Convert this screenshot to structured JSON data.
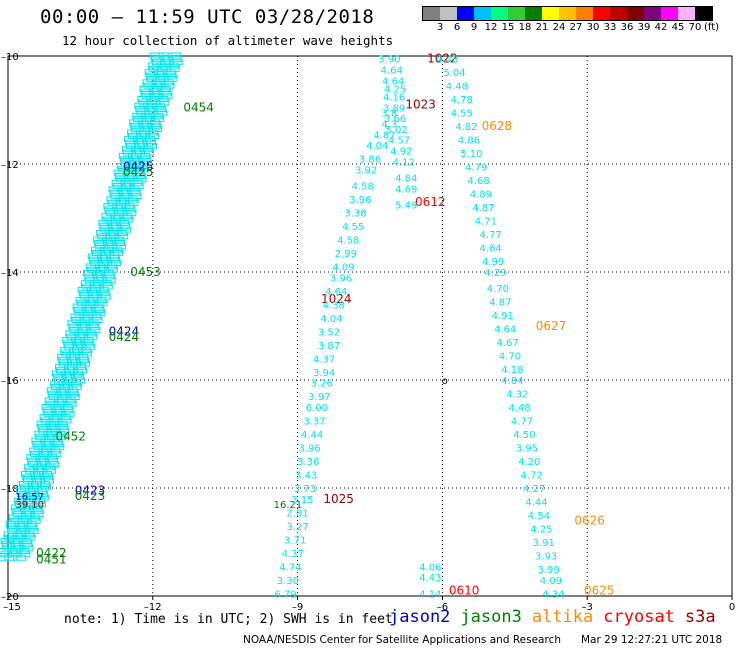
{
  "header": {
    "title": "00:00 – 11:59 UTC 03/28/2018",
    "subtitle": "12 hour collection of altimeter wave heights"
  },
  "colorbar": {
    "unit": "(ft)",
    "colors": [
      "#808080",
      "#c0c0c0",
      "#0000ff",
      "#00bfff",
      "#00ff7f",
      "#32cd32",
      "#008000",
      "#ffff00",
      "#ffc000",
      "#ff8000",
      "#ff0000",
      "#c00000",
      "#800000",
      "#800080",
      "#ff00ff",
      "#ffb0ff",
      "#000000"
    ],
    "tick_labels": [
      "3",
      "6",
      "9",
      "12",
      "15",
      "18",
      "21",
      "24",
      "27",
      "30",
      "33",
      "36",
      "39",
      "42",
      "45",
      "70"
    ]
  },
  "map": {
    "x_tick_labels": [
      "–15",
      "–12",
      "–9",
      "–6",
      "–3",
      "0"
    ],
    "y_tick_labels": [
      "–10",
      "–12",
      "–14",
      "–16",
      "–18",
      "–20"
    ],
    "marker": "o"
  },
  "chart_data": {
    "type": "scatter",
    "xlim": [
      -15,
      0
    ],
    "ylim": [
      -20,
      -10
    ],
    "grid": true,
    "series": [
      {
        "name": "jason2",
        "color": "#0000cd",
        "labels": [
          {
            "x": -12.3,
            "y": -12.05,
            "text": "0425"
          },
          {
            "x": -12.6,
            "y": -15.1,
            "text": "0424"
          },
          {
            "x": -13.3,
            "y": -18.05,
            "text": "0423"
          },
          {
            "x": -14.55,
            "y": -18.15,
            "text": "16.57"
          }
        ]
      },
      {
        "name": "jason3",
        "color": "#008000",
        "labels": [
          {
            "x": -11.05,
            "y": -10.95,
            "text": "0454"
          },
          {
            "x": -12.3,
            "y": -12.15,
            "text": "0425"
          },
          {
            "x": -12.15,
            "y": -14.0,
            "text": "0453"
          },
          {
            "x": -12.6,
            "y": -15.2,
            "text": "0424"
          },
          {
            "x": -13.3,
            "y": -18.15,
            "text": "0423"
          },
          {
            "x": -13.7,
            "y": -17.05,
            "text": "0452"
          },
          {
            "x": -14.1,
            "y": -19.2,
            "text": "0422"
          },
          {
            "x": -14.1,
            "y": -19.32,
            "text": "0451"
          },
          {
            "x": -9.2,
            "y": -18.3,
            "text": "16.21"
          }
        ]
      },
      {
        "name": "altika",
        "color": "#ff8c00",
        "labels": [
          {
            "x": -4.87,
            "y": -11.3,
            "text": "0628"
          },
          {
            "x": -3.75,
            "y": -15.0,
            "text": "0627"
          },
          {
            "x": -2.95,
            "y": -18.6,
            "text": "0626"
          },
          {
            "x": -2.75,
            "y": -19.9,
            "text": "0625"
          }
        ]
      },
      {
        "name": "cryosat",
        "color": "#ff0000",
        "labels": [
          {
            "x": -6.25,
            "y": -12.7,
            "text": "0612"
          },
          {
            "x": -5.55,
            "y": -19.9,
            "text": "0610"
          }
        ]
      },
      {
        "name": "s3a",
        "color": "#a00000",
        "labels": [
          {
            "x": -6.0,
            "y": -10.05,
            "text": "1022"
          },
          {
            "x": -6.45,
            "y": -10.9,
            "text": "1023"
          },
          {
            "x": -8.2,
            "y": -14.5,
            "text": "1024"
          },
          {
            "x": -8.15,
            "y": -18.2,
            "text": "1025"
          },
          {
            "x": -14.55,
            "y": -18.3,
            "text": "39.10"
          }
        ]
      },
      {
        "name": "",
        "color": "#00e5ee",
        "labels": [
          {
            "x": -7.1,
            "y": -10.05,
            "text": "3.90"
          },
          {
            "x": -7.05,
            "y": -10.25,
            "text": "4.64"
          },
          {
            "x": -7.02,
            "y": -10.45,
            "text": "4.64"
          },
          {
            "x": -6.98,
            "y": -10.6,
            "text": "4.25"
          },
          {
            "x": -7.0,
            "y": -10.75,
            "text": "4.16"
          },
          {
            "x": -7.0,
            "y": -10.95,
            "text": "3.89"
          },
          {
            "x": -7.1,
            "y": -11.05,
            "text": "3.8"
          },
          {
            "x": -6.98,
            "y": -11.15,
            "text": "3.66"
          },
          {
            "x": -7.1,
            "y": -11.25,
            "text": "4.3"
          },
          {
            "x": -6.95,
            "y": -11.35,
            "text": "5.02"
          },
          {
            "x": -7.2,
            "y": -11.45,
            "text": "4.87"
          },
          {
            "x": -6.9,
            "y": -11.55,
            "text": "4.57"
          },
          {
            "x": -7.35,
            "y": -11.65,
            "text": "4.04"
          },
          {
            "x": -6.85,
            "y": -11.75,
            "text": "4.92"
          },
          {
            "x": -7.5,
            "y": -11.9,
            "text": "3.86"
          },
          {
            "x": -6.8,
            "y": -11.95,
            "text": "4.12"
          },
          {
            "x": -7.58,
            "y": -12.1,
            "text": "3.92"
          },
          {
            "x": -6.75,
            "y": -12.25,
            "text": "4.84"
          },
          {
            "x": -7.65,
            "y": -12.4,
            "text": "4.58"
          },
          {
            "x": -6.75,
            "y": -12.45,
            "text": "4.69"
          },
          {
            "x": -7.7,
            "y": -12.65,
            "text": "3.96"
          },
          {
            "x": -6.75,
            "y": -12.75,
            "text": "5.49"
          },
          {
            "x": -7.8,
            "y": -12.9,
            "text": "3.38"
          },
          {
            "x": -7.85,
            "y": -13.15,
            "text": "4.55"
          },
          {
            "x": -7.95,
            "y": -13.4,
            "text": "4.58"
          },
          {
            "x": -8.0,
            "y": -13.65,
            "text": "2.99"
          },
          {
            "x": -8.05,
            "y": -13.9,
            "text": "4.09"
          },
          {
            "x": -8.1,
            "y": -14.1,
            "text": "3.96"
          },
          {
            "x": -8.2,
            "y": -14.35,
            "text": "4.64"
          },
          {
            "x": -8.25,
            "y": -14.6,
            "text": "4.38"
          },
          {
            "x": -8.3,
            "y": -14.85,
            "text": "4.04"
          },
          {
            "x": -8.35,
            "y": -15.1,
            "text": "3.52"
          },
          {
            "x": -8.35,
            "y": -15.35,
            "text": "3.87"
          },
          {
            "x": -8.45,
            "y": -15.6,
            "text": "4.37"
          },
          {
            "x": -8.45,
            "y": -15.85,
            "text": "3.94"
          },
          {
            "x": -8.5,
            "y": -16.05,
            "text": "3.26"
          },
          {
            "x": -8.55,
            "y": -16.3,
            "text": "3.97"
          },
          {
            "x": -8.6,
            "y": -16.5,
            "text": "6.00"
          },
          {
            "x": -8.65,
            "y": -16.75,
            "text": "3.37"
          },
          {
            "x": -8.7,
            "y": -17.0,
            "text": "4.44"
          },
          {
            "x": -8.75,
            "y": -17.25,
            "text": "3.96"
          },
          {
            "x": -8.78,
            "y": -17.5,
            "text": "3.36"
          },
          {
            "x": -8.82,
            "y": -17.75,
            "text": "3.43"
          },
          {
            "x": -8.85,
            "y": -18.0,
            "text": "3.73"
          },
          {
            "x": -8.9,
            "y": -18.2,
            "text": "3.15"
          },
          {
            "x": -9.0,
            "y": -18.45,
            "text": "2.81"
          },
          {
            "x": -9.0,
            "y": -18.7,
            "text": "3.27"
          },
          {
            "x": -9.05,
            "y": -18.95,
            "text": "3.71"
          },
          {
            "x": -9.1,
            "y": -19.2,
            "text": "4.37"
          },
          {
            "x": -9.15,
            "y": -19.45,
            "text": "4.74"
          },
          {
            "x": -9.2,
            "y": -19.7,
            "text": "3.30"
          },
          {
            "x": -9.25,
            "y": -19.95,
            "text": "6.79"
          },
          {
            "x": -5.9,
            "y": -10.05,
            "text": "4.43"
          },
          {
            "x": -5.75,
            "y": -10.3,
            "text": "5.04"
          },
          {
            "x": -5.7,
            "y": -10.55,
            "text": "4.48"
          },
          {
            "x": -5.6,
            "y": -10.8,
            "text": "4.78"
          },
          {
            "x": -5.6,
            "y": -11.05,
            "text": "4.55"
          },
          {
            "x": -5.5,
            "y": -11.3,
            "text": "4.82"
          },
          {
            "x": -5.45,
            "y": -11.55,
            "text": "4.86"
          },
          {
            "x": -5.4,
            "y": -11.8,
            "text": "5.10"
          },
          {
            "x": -5.3,
            "y": -12.05,
            "text": "4.79"
          },
          {
            "x": -5.25,
            "y": -12.3,
            "text": "4.68"
          },
          {
            "x": -5.2,
            "y": -12.55,
            "text": "4.89"
          },
          {
            "x": -5.15,
            "y": -12.8,
            "text": "4.87"
          },
          {
            "x": -5.1,
            "y": -13.05,
            "text": "4.71"
          },
          {
            "x": -5.0,
            "y": -13.3,
            "text": "4.77"
          },
          {
            "x": -5.0,
            "y": -13.55,
            "text": "4.84"
          },
          {
            "x": -4.95,
            "y": -13.8,
            "text": "4.99"
          },
          {
            "x": -4.9,
            "y": -14.0,
            "text": "4.29"
          },
          {
            "x": -4.85,
            "y": -14.3,
            "text": "4.70"
          },
          {
            "x": -4.8,
            "y": -14.55,
            "text": "4.87"
          },
          {
            "x": -4.75,
            "y": -14.8,
            "text": "4.91"
          },
          {
            "x": -4.7,
            "y": -15.05,
            "text": "4.64"
          },
          {
            "x": -4.65,
            "y": -15.3,
            "text": "4.67"
          },
          {
            "x": -4.6,
            "y": -15.55,
            "text": "4.70"
          },
          {
            "x": -4.55,
            "y": -15.8,
            "text": "4.18"
          },
          {
            "x": -4.55,
            "y": -16.0,
            "text": "4.84"
          },
          {
            "x": -4.45,
            "y": -16.25,
            "text": "4.32"
          },
          {
            "x": -4.4,
            "y": -16.5,
            "text": "4.48"
          },
          {
            "x": -4.35,
            "y": -16.75,
            "text": "4.77"
          },
          {
            "x": -4.3,
            "y": -17.0,
            "text": "4.50"
          },
          {
            "x": -4.25,
            "y": -17.25,
            "text": "3.95"
          },
          {
            "x": -4.2,
            "y": -17.5,
            "text": "4.20"
          },
          {
            "x": -4.15,
            "y": -17.75,
            "text": "4.72"
          },
          {
            "x": -4.1,
            "y": -18.0,
            "text": "4.27"
          },
          {
            "x": -4.05,
            "y": -18.25,
            "text": "4.44"
          },
          {
            "x": -4.0,
            "y": -18.5,
            "text": "4.54"
          },
          {
            "x": -3.95,
            "y": -18.75,
            "text": "4.25"
          },
          {
            "x": -3.9,
            "y": -19.0,
            "text": "3.91"
          },
          {
            "x": -3.85,
            "y": -19.25,
            "text": "3.93"
          },
          {
            "x": -3.8,
            "y": -19.5,
            "text": "3.99"
          },
          {
            "x": -3.75,
            "y": -19.7,
            "text": "4.09"
          },
          {
            "x": -3.7,
            "y": -19.95,
            "text": "4.34"
          },
          {
            "x": -6.25,
            "y": -19.45,
            "text": "4.06"
          },
          {
            "x": -6.25,
            "y": -19.65,
            "text": "4.43"
          },
          {
            "x": -6.25,
            "y": -19.95,
            "text": "4.14"
          }
        ]
      }
    ]
  },
  "footer": {
    "note": "note: 1) Time is in UTC; 2) SWH is in feet",
    "legend": [
      {
        "label": "jason2",
        "color": "#0000cd"
      },
      {
        "label": "jason3",
        "color": "#008000"
      },
      {
        "label": "altika",
        "color": "#ff8c00"
      },
      {
        "label": "cryosat",
        "color": "#ff0000"
      },
      {
        "label": "s3a",
        "color": "#a00000"
      }
    ],
    "credit": "NOAA/NESDIS Center for Satellite Applications and Research",
    "timestamp": "Mar 29 12:27:21 UTC 2018"
  }
}
